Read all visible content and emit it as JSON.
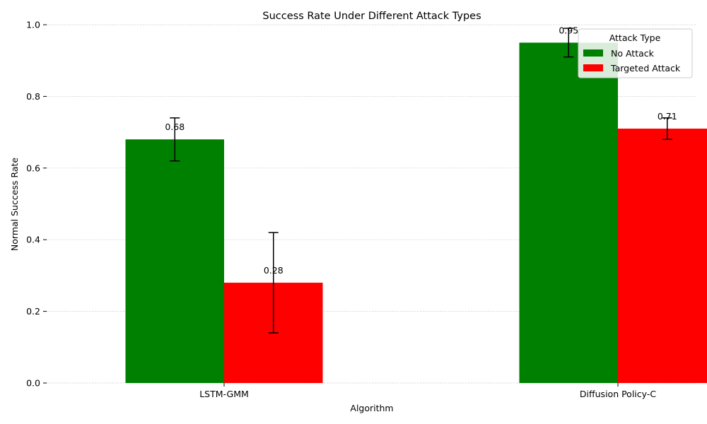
{
  "chart_data": {
    "type": "bar",
    "title": "Success Rate Under Different Attack Types",
    "xlabel": "Algorithm",
    "ylabel": "Normal Success Rate",
    "categories": [
      "LSTM-GMM",
      "Diffusion Policy-C"
    ],
    "series": [
      {
        "name": "No Attack",
        "color": "#008000",
        "values": [
          0.68,
          0.95
        ],
        "errors": [
          0.06,
          0.04
        ]
      },
      {
        "name": "Targeted Attack",
        "color": "#ff0000",
        "values": [
          0.28,
          0.71
        ],
        "errors": [
          0.14,
          0.03
        ]
      }
    ],
    "value_labels": [
      [
        "0.68",
        "0.95"
      ],
      [
        "0.28",
        "0.71"
      ]
    ],
    "ylim": [
      0,
      1.0
    ],
    "yticks": [
      "0.0",
      "0.2",
      "0.4",
      "0.6",
      "0.8",
      "1.0"
    ],
    "grid": true,
    "legend": {
      "title": "Attack Type",
      "position": "top-right"
    }
  }
}
